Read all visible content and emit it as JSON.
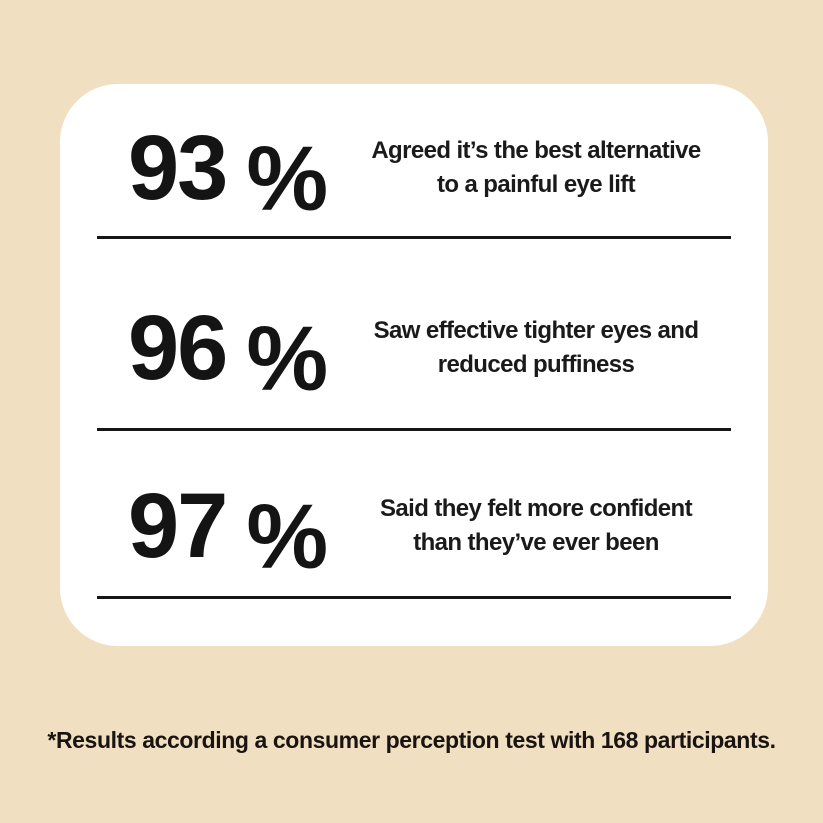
{
  "page": {
    "background_color": "#f1dfc2",
    "card_color": "#ffffff",
    "text_color": "#141414"
  },
  "stats": [
    {
      "value": "93",
      "percent_sign": "%",
      "line1": "Agreed it’s the best alternative",
      "line2": "to a painful eye lift"
    },
    {
      "value": "96",
      "percent_sign": "%",
      "line1": "Saw effective tighter eyes and",
      "line2": "reduced puffiness"
    },
    {
      "value": "97",
      "percent_sign": "%",
      "line1": "Said they felt more confident",
      "line2": "than they’ve ever been"
    }
  ],
  "footnote": "*Results according a consumer perception test with 168 participants."
}
